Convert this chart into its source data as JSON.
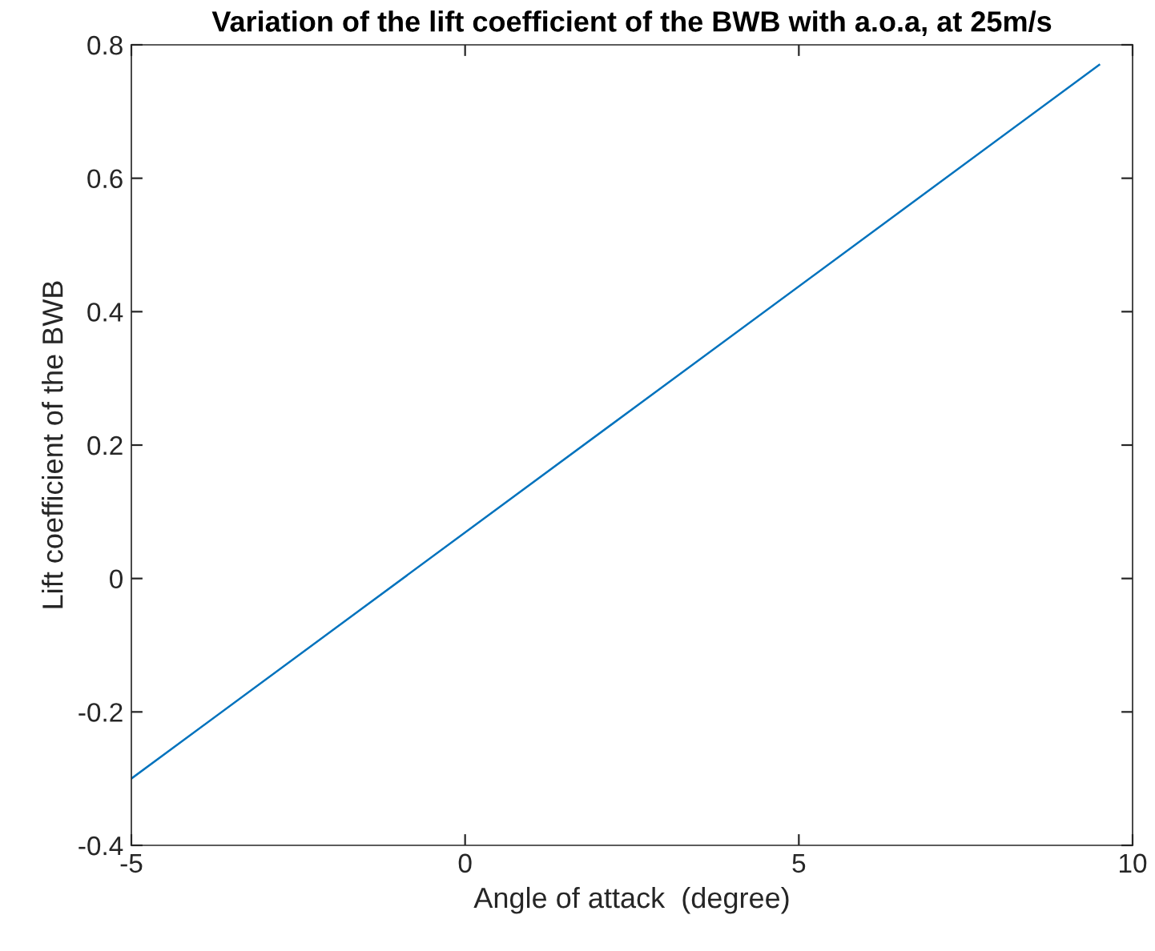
{
  "chart_data": {
    "type": "line",
    "title": "Variation of the lift coefficient of the BWB with a.o.a, at 25m/s",
    "xlabel": "Angle of attack  (degree)",
    "ylabel": "Lift coefficient of the BWB",
    "series": [
      {
        "color": "#0072bd",
        "x": [
          -5,
          9.5
        ],
        "values": [
          -0.3,
          0.77
        ]
      }
    ],
    "xlim": [
      -5,
      10
    ],
    "xticks": [
      -5,
      0,
      5,
      10
    ],
    "ylim": [
      -0.4,
      0.8
    ],
    "yticks": [
      -0.4,
      -0.2,
      0,
      0.2,
      0.4,
      0.6,
      0.8
    ],
    "grid": false,
    "legend": false,
    "marker": "none",
    "line_style": "solid"
  }
}
